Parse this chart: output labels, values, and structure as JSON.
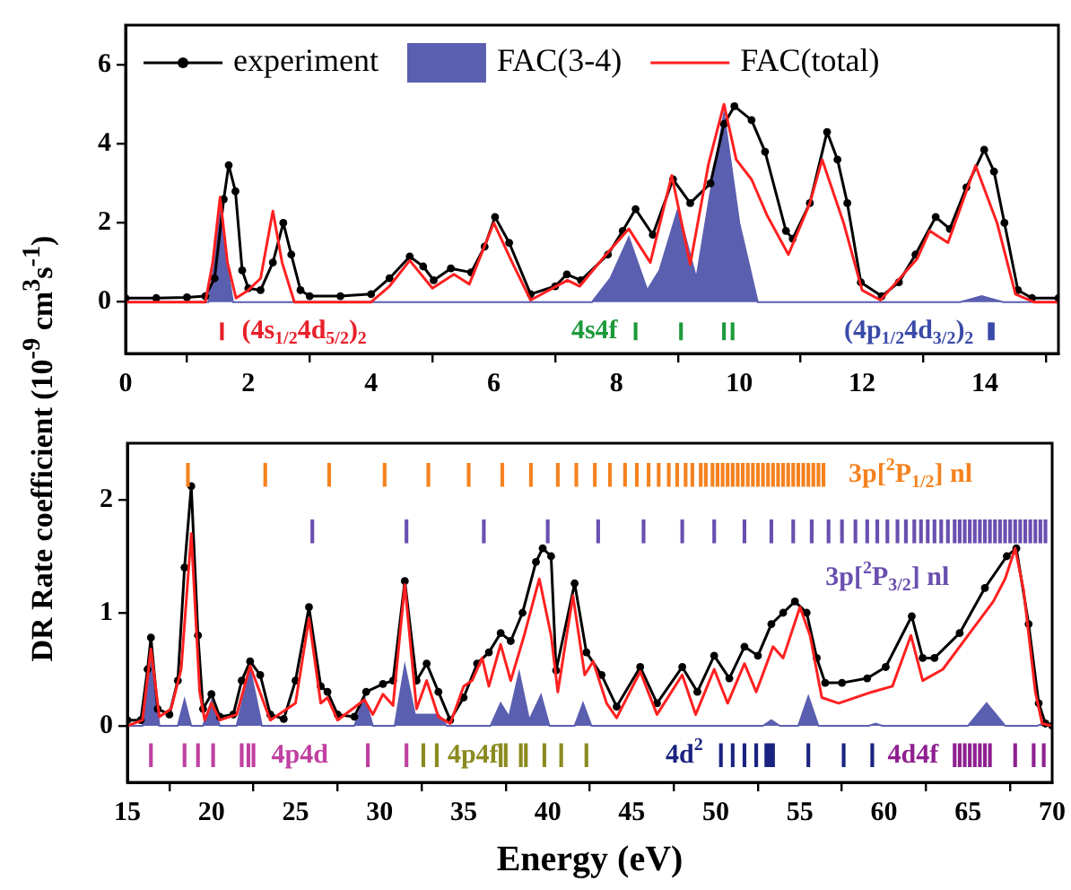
{
  "chart_data": [
    {
      "type": "line",
      "ylabel": "DR Rate coefficient (10$^{-9}$ cm$^{3}$s$^{-1}$)",
      "xlim": [
        0,
        15.2
      ],
      "xticks": [
        0,
        2,
        4,
        6,
        8,
        10,
        12,
        14
      ],
      "ylim": [
        -1.3,
        7
      ],
      "yticks": [
        0,
        2,
        4,
        6
      ],
      "legend": "top left",
      "series": [
        {
          "name": "FAC(3-4)",
          "type": "area",
          "color": "#5b5fb0",
          "x": [
            0,
            1.35,
            1.45,
            1.55,
            1.65,
            1.75,
            7.6,
            7.9,
            8.2,
            8.5,
            8.7,
            9.0,
            9.3,
            9.5,
            9.75,
            10.0,
            10.3,
            13.6,
            13.95,
            14.3,
            15.2
          ],
          "values": [
            0,
            0,
            1.0,
            2.6,
            1.0,
            0,
            0,
            0.6,
            1.63,
            0.3,
            0.8,
            2.35,
            0.6,
            2.5,
            4.75,
            2.0,
            0,
            0,
            0.15,
            0,
            0
          ]
        },
        {
          "name": "experiment",
          "type": "line",
          "color": "#000000",
          "marker": "circle",
          "x": [
            0,
            0.5,
            1.0,
            1.3,
            1.45,
            1.6,
            1.68,
            1.79,
            1.9,
            2.0,
            2.2,
            2.4,
            2.57,
            2.7,
            2.85,
            3.0,
            3.5,
            4.0,
            4.3,
            4.63,
            4.85,
            5.02,
            5.3,
            5.63,
            5.85,
            6.02,
            6.25,
            6.6,
            7.0,
            7.19,
            7.42,
            7.86,
            8.1,
            8.31,
            8.59,
            8.92,
            9.2,
            9.53,
            9.75,
            9.92,
            10.2,
            10.42,
            10.76,
            10.87,
            11.15,
            11.43,
            11.6,
            11.76,
            11.98,
            12.32,
            12.6,
            12.87,
            13.2,
            13.43,
            13.7,
            13.99,
            14.15,
            14.32,
            14.54,
            14.77,
            15.2
          ],
          "values": [
            0.1,
            0.1,
            0.12,
            0.15,
            0.6,
            2.6,
            3.46,
            2.8,
            0.8,
            0.35,
            0.3,
            1.0,
            2.0,
            1.2,
            0.3,
            0.15,
            0.15,
            0.2,
            0.6,
            1.15,
            0.9,
            0.55,
            0.85,
            0.75,
            1.4,
            2.15,
            1.5,
            0.2,
            0.4,
            0.7,
            0.55,
            1.2,
            1.8,
            2.35,
            1.7,
            3.1,
            2.5,
            3.0,
            4.5,
            4.95,
            4.6,
            3.8,
            1.8,
            1.6,
            2.5,
            4.3,
            3.6,
            2.5,
            0.5,
            0.15,
            0.5,
            1.2,
            2.15,
            1.85,
            2.9,
            3.85,
            3.3,
            2.0,
            0.3,
            0.1,
            0.1
          ]
        },
        {
          "name": "FAC(total)",
          "type": "line",
          "color": "#ff2020",
          "x": [
            0,
            1.3,
            1.42,
            1.54,
            1.66,
            1.8,
            2.0,
            2.2,
            2.4,
            2.55,
            2.75,
            4.0,
            4.3,
            4.63,
            5.0,
            5.35,
            5.6,
            6.0,
            6.3,
            6.6,
            7.2,
            7.4,
            7.8,
            8.2,
            8.55,
            8.9,
            9.2,
            9.5,
            9.75,
            9.95,
            10.2,
            10.45,
            10.8,
            11.15,
            11.35,
            11.7,
            12.0,
            12.3,
            12.9,
            13.1,
            13.4,
            13.85,
            14.2,
            14.5,
            14.8,
            15.2
          ],
          "values": [
            0,
            0,
            1.0,
            2.65,
            1.0,
            0.1,
            0.3,
            0.6,
            2.3,
            1.0,
            0,
            0,
            0.4,
            1.05,
            0.35,
            0.7,
            0.45,
            2.0,
            1.0,
            0.05,
            0.55,
            0.4,
            1.15,
            1.85,
            1.0,
            3.2,
            0.95,
            3.5,
            5.0,
            3.6,
            3.1,
            2.2,
            1.2,
            2.5,
            3.6,
            2.0,
            0.3,
            0.05,
            1.1,
            1.8,
            1.5,
            3.45,
            2.0,
            0.2,
            0,
            0
          ]
        },
        {
          "name": "(4s$_{1/2}$4d$_{5/2}$)$_{2}$",
          "type": "bar",
          "color": "#e8202a",
          "x": [
            1.57
          ],
          "base": [
            -0.95
          ],
          "values": [
            0.42
          ]
        },
        {
          "name": "4s4f",
          "type": "bar",
          "color": "#1e9a3c",
          "x": [
            8.31,
            9.05,
            9.75,
            9.89
          ],
          "base": [
            -0.95,
            -0.95,
            -0.95,
            -0.95
          ],
          "values": [
            0.42,
            0.42,
            0.42,
            0.42
          ]
        },
        {
          "name": "(4p$_{1/2}$4d$_{3/2}$)$_{2}$",
          "type": "bar",
          "color": "#3a4aa8",
          "x": [
            14.08,
            14.13
          ],
          "base": [
            -0.95,
            -0.95
          ],
          "values": [
            0.42,
            0.42
          ]
        }
      ]
    },
    {
      "type": "line",
      "xlabel": "Energy (eV)",
      "xlim": [
        15,
        70
      ],
      "xticks": [
        15,
        20,
        25,
        30,
        35,
        40,
        45,
        50,
        55,
        60,
        65,
        70
      ],
      "ylim": [
        -0.5,
        2.5
      ],
      "yticks": [
        0,
        1,
        2
      ],
      "series": [
        {
          "type": "area",
          "color": "#5b5fb0",
          "x": [
            15,
            15.9,
            16.4,
            16.9,
            18.0,
            18.4,
            18.8,
            19.5,
            20.0,
            20.5,
            21.5,
            22.3,
            23.0,
            28.5,
            29.1,
            29.6,
            30.9,
            31.5,
            32.1,
            33.5,
            34.0,
            36.6,
            37.2,
            37.7,
            38.3,
            38.9,
            39.6,
            40.1,
            41.6,
            42.1,
            42.6,
            52.8,
            53.3,
            53.8,
            54.9,
            55.5,
            56.1,
            59.1,
            59.5,
            59.9,
            65.0,
            66.1,
            67.2,
            69.1,
            69.5,
            70
          ],
          "values": [
            0,
            0,
            0.7,
            0,
            0,
            0.23,
            0,
            0,
            0.22,
            0,
            0,
            0.5,
            0,
            0,
            0.25,
            0,
            0,
            0.53,
            0.1,
            0.1,
            0,
            0,
            0.2,
            0.08,
            0.47,
            0.05,
            0.27,
            0,
            0,
            0.2,
            0,
            0,
            0.05,
            0,
            0,
            0.26,
            0,
            0,
            0.02,
            0,
            0,
            0.2,
            0,
            0,
            0.02,
            0
          ]
        },
        {
          "type": "line",
          "color": "#000000",
          "marker": "circle",
          "x": [
            15,
            15.8,
            16.2,
            16.4,
            16.8,
            17.5,
            18.0,
            18.4,
            18.8,
            19.2,
            19.5,
            20.0,
            20.5,
            21.3,
            21.8,
            22.3,
            22.9,
            23.5,
            24.3,
            25.0,
            25.8,
            26.5,
            26.9,
            27.5,
            28.5,
            29.2,
            30.2,
            30.8,
            31.5,
            32.2,
            32.8,
            33.5,
            34.2,
            35.0,
            35.8,
            36.5,
            37.2,
            37.8,
            38.5,
            39.3,
            39.7,
            40.2,
            40.5,
            41.6,
            42.3,
            43.2,
            44.1,
            45.5,
            46.5,
            48.0,
            48.9,
            49.9,
            50.8,
            51.7,
            52.5,
            53.3,
            54.0,
            54.7,
            55.4,
            56.0,
            56.5,
            57.5,
            59.0,
            60.1,
            61.65,
            62.3,
            63.0,
            64.5,
            66.0,
            67.3,
            67.87,
            68.6,
            69.2,
            69.6,
            70
          ],
          "values": [
            0.05,
            0.05,
            0.5,
            0.78,
            0.15,
            0.1,
            0.4,
            1.4,
            2.12,
            0.8,
            0.15,
            0.28,
            0.08,
            0.1,
            0.4,
            0.57,
            0.45,
            0.1,
            0.06,
            0.4,
            1.05,
            0.35,
            0.3,
            0.1,
            0.08,
            0.3,
            0.37,
            0.4,
            1.28,
            0.4,
            0.55,
            0.3,
            0.05,
            0.25,
            0.55,
            0.65,
            0.82,
            0.75,
            1.0,
            1.45,
            1.57,
            1.5,
            0.49,
            1.26,
            0.65,
            0.45,
            0.17,
            0.52,
            0.2,
            0.52,
            0.3,
            0.62,
            0.42,
            0.7,
            0.62,
            0.9,
            1.0,
            1.1,
            1.0,
            0.6,
            0.38,
            0.38,
            0.42,
            0.52,
            0.97,
            0.6,
            0.6,
            0.82,
            1.22,
            1.5,
            1.57,
            0.9,
            0.2,
            0.02,
            0
          ]
        },
        {
          "type": "line",
          "color": "#ff2020",
          "x": [
            15,
            15.9,
            16.4,
            16.9,
            17.6,
            18.2,
            18.8,
            19.3,
            19.6,
            20.0,
            20.5,
            21.5,
            22.3,
            23.5,
            25.0,
            25.8,
            26.5,
            26.9,
            27.5,
            29.1,
            29.6,
            30.2,
            30.8,
            31.5,
            32.2,
            32.8,
            33.5,
            34.2,
            35.0,
            35.5,
            36.1,
            36.5,
            37.2,
            37.8,
            38.6,
            39.5,
            40.2,
            40.6,
            41.5,
            42.2,
            42.7,
            43.5,
            44.1,
            45.5,
            46.5,
            48.0,
            48.8,
            49.9,
            50.7,
            51.7,
            52.4,
            53.4,
            54.0,
            55.0,
            55.6,
            56.3,
            57.3,
            59.3,
            60.5,
            61.6,
            62.3,
            63.5,
            65.0,
            66.5,
            67.2,
            67.8,
            68.3,
            69.0,
            69.4,
            70
          ],
          "values": [
            0,
            0.05,
            0.68,
            0.08,
            0.15,
            0.5,
            1.7,
            0.3,
            0.05,
            0.2,
            0.05,
            0.1,
            0.53,
            0.05,
            0.2,
            0.95,
            0.2,
            0.25,
            0.05,
            0.23,
            0.1,
            0.28,
            0.18,
            1.25,
            0.15,
            0.4,
            0.08,
            0.02,
            0.35,
            0.4,
            0.6,
            0.35,
            0.72,
            0.4,
            0.8,
            1.3,
            0.8,
            0.3,
            1.15,
            0.45,
            0.57,
            0.2,
            0.07,
            0.48,
            0.1,
            0.45,
            0.1,
            0.5,
            0.2,
            0.55,
            0.3,
            0.7,
            0.6,
            1.05,
            0.8,
            0.25,
            0.2,
            0.3,
            0.35,
            0.8,
            0.4,
            0.5,
            0.8,
            1.1,
            1.3,
            1.57,
            1.2,
            0.3,
            0.02,
            0
          ]
        },
        {
          "name": "3p[$^{2}$P$_{1/2}$] nl",
          "type": "bar",
          "color": "#f5821f",
          "x": [
            18.6,
            23.2,
            27.0,
            30.3,
            32.9,
            35.3,
            37.3,
            39.0,
            40.6,
            41.7,
            42.8,
            43.7,
            44.6,
            45.3,
            46.0,
            46.6,
            47.2,
            47.7,
            48.2,
            48.6,
            49.1,
            49.4,
            49.8,
            50.1,
            50.4,
            50.7,
            51.0,
            51.3,
            51.6,
            51.9,
            52.2,
            52.5,
            52.8,
            53.1,
            53.4,
            53.7,
            54.0,
            54.3,
            54.6,
            54.9,
            55.2,
            55.5,
            55.8,
            56.1,
            56.4
          ],
          "base": [
            2.12,
            2.12,
            2.12,
            2.12,
            2.12,
            2.12,
            2.12,
            2.12,
            2.12,
            2.12,
            2.12,
            2.12,
            2.12,
            2.12,
            2.12,
            2.12,
            2.12,
            2.12,
            2.12,
            2.12,
            2.12,
            2.12,
            2.12,
            2.12,
            2.12,
            2.12,
            2.12,
            2.12,
            2.12,
            2.12,
            2.12,
            2.12,
            2.12,
            2.12,
            2.12,
            2.12,
            2.12,
            2.12,
            2.12,
            2.12,
            2.12,
            2.12,
            2.12,
            2.12,
            2.12
          ],
          "values": [
            0.2,
            0.2,
            0.2,
            0.2,
            0.2,
            0.2,
            0.2,
            0.2,
            0.2,
            0.2,
            0.2,
            0.2,
            0.2,
            0.2,
            0.2,
            0.2,
            0.2,
            0.2,
            0.2,
            0.2,
            0.2,
            0.2,
            0.2,
            0.2,
            0.2,
            0.2,
            0.2,
            0.2,
            0.2,
            0.2,
            0.2,
            0.2,
            0.2,
            0.2,
            0.2,
            0.2,
            0.2,
            0.2,
            0.2,
            0.2,
            0.2,
            0.2,
            0.2,
            0.2,
            0.2
          ]
        },
        {
          "name": "3p[$^{2}$P$_{3/2}$] nl",
          "type": "bar",
          "color": "#6a4fb0",
          "x": [
            26.0,
            31.6,
            36.2,
            40.0,
            43.0,
            45.7,
            48.0,
            49.9,
            51.7,
            53.3,
            54.6,
            55.7,
            56.7,
            57.5,
            58.3,
            59.0,
            59.6,
            60.2,
            60.8,
            61.3,
            61.8,
            62.2,
            62.6,
            63.0,
            63.4,
            63.8,
            64.2,
            64.5,
            64.8,
            65.1,
            65.4,
            65.7,
            66.0,
            66.3,
            66.6,
            66.9,
            67.2,
            67.5,
            67.8,
            68.1,
            68.4,
            68.7,
            69.0,
            69.3,
            69.6
          ],
          "base": [
            1.62,
            1.62,
            1.62,
            1.62,
            1.62,
            1.62,
            1.62,
            1.62,
            1.62,
            1.62,
            1.62,
            1.62,
            1.62,
            1.62,
            1.62,
            1.62,
            1.62,
            1.62,
            1.62,
            1.62,
            1.62,
            1.62,
            1.62,
            1.62,
            1.62,
            1.62,
            1.62,
            1.62,
            1.62,
            1.62,
            1.62,
            1.62,
            1.62,
            1.62,
            1.62,
            1.62,
            1.62,
            1.62,
            1.62,
            1.62,
            1.62,
            1.62,
            1.62,
            1.62,
            1.62
          ],
          "values": [
            0.2,
            0.2,
            0.2,
            0.2,
            0.2,
            0.2,
            0.2,
            0.2,
            0.2,
            0.2,
            0.2,
            0.2,
            0.2,
            0.2,
            0.2,
            0.2,
            0.2,
            0.2,
            0.2,
            0.2,
            0.2,
            0.2,
            0.2,
            0.2,
            0.2,
            0.2,
            0.2,
            0.2,
            0.2,
            0.2,
            0.2,
            0.2,
            0.2,
            0.2,
            0.2,
            0.2,
            0.2,
            0.2,
            0.2,
            0.2,
            0.2,
            0.2,
            0.2,
            0.2,
            0.2
          ]
        },
        {
          "name": "4p4d",
          "type": "bar",
          "color": "#c040a0",
          "x": [
            16.4,
            18.4,
            19.2,
            20.1,
            21.8,
            22.2,
            22.5,
            29.3,
            31.6
          ],
          "base": [
            -0.36,
            -0.36,
            -0.36,
            -0.36,
            -0.36,
            -0.36,
            -0.36,
            -0.36,
            -0.36
          ],
          "values": [
            0.2,
            0.2,
            0.2,
            0.2,
            0.2,
            0.2,
            0.2,
            0.2,
            0.2
          ]
        },
        {
          "name": "4p4f",
          "type": "bar",
          "color": "#8a8a20",
          "x": [
            32.6,
            33.4,
            37.2,
            37.5,
            38.4,
            38.7,
            39.8,
            40.8,
            42.3
          ],
          "base": [
            -0.36,
            -0.36,
            -0.36,
            -0.36,
            -0.36,
            -0.36,
            -0.36,
            -0.36,
            -0.36
          ],
          "values": [
            0.2,
            0.2,
            0.2,
            0.2,
            0.2,
            0.2,
            0.2,
            0.2,
            0.2
          ]
        },
        {
          "name": "4d$^{2}$",
          "type": "bar",
          "color": "#1a2380",
          "x": [
            50.3,
            51.0,
            51.7,
            52.4,
            53.0,
            53.2,
            53.4,
            55.5,
            57.6,
            59.3
          ],
          "base": [
            -0.36,
            -0.36,
            -0.36,
            -0.36,
            -0.36,
            -0.36,
            -0.36,
            -0.36,
            -0.36,
            -0.36
          ],
          "values": [
            0.2,
            0.2,
            0.2,
            0.2,
            0.2,
            0.2,
            0.2,
            0.2,
            0.2,
            0.2
          ]
        },
        {
          "name": "4d4f",
          "type": "bar",
          "color": "#8e2090",
          "x": [
            64.2,
            64.5,
            64.8,
            65.1,
            65.4,
            65.7,
            66.0,
            66.3,
            67.8,
            68.9,
            69.5
          ],
          "base": [
            -0.36,
            -0.36,
            -0.36,
            -0.36,
            -0.36,
            -0.36,
            -0.36,
            -0.36,
            -0.36,
            -0.36,
            -0.36
          ],
          "values": [
            0.2,
            0.2,
            0.2,
            0.2,
            0.2,
            0.2,
            0.2,
            0.2,
            0.2,
            0.2,
            0.2
          ]
        }
      ]
    }
  ]
}
